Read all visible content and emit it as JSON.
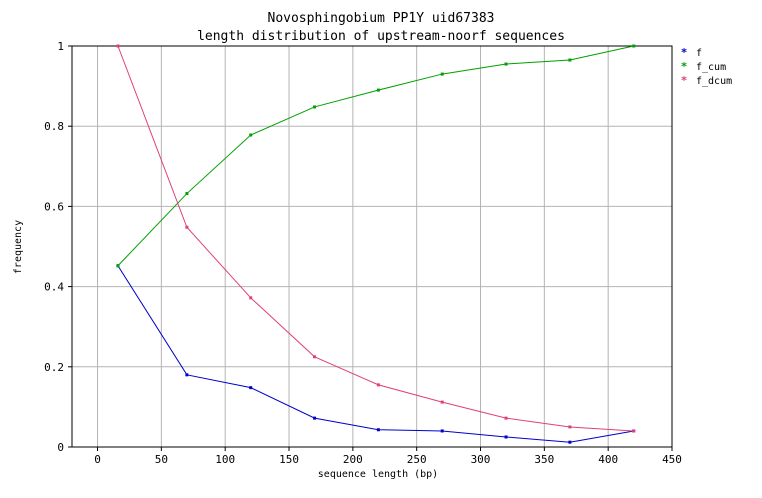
{
  "chart_data": {
    "type": "line",
    "title": "Novosphingobium PP1Y uid67383",
    "subtitle": "length distribution of upstream-noorf sequences",
    "xlabel": "sequence length (bp)",
    "ylabel": "frequency",
    "xlim": [
      -20,
      450
    ],
    "ylim": [
      0,
      1
    ],
    "xticks": [
      0,
      50,
      100,
      150,
      200,
      250,
      300,
      350,
      400,
      450
    ],
    "yticks": [
      0,
      0.2,
      0.4,
      0.6,
      0.8,
      1
    ],
    "ytick_labels": [
      "0",
      "0.2",
      "0.4",
      "0.6",
      "0.8",
      "1"
    ],
    "grid": true,
    "legend": "right",
    "x": [
      16,
      70,
      120,
      170,
      220,
      270,
      320,
      370,
      420
    ],
    "series": [
      {
        "name": "f",
        "color": "#0000cc",
        "values": [
          0.452,
          0.18,
          0.148,
          0.072,
          0.043,
          0.04,
          0.025,
          0.012,
          0.04
        ]
      },
      {
        "name": "f_cum",
        "color": "#00a000",
        "values": [
          0.452,
          0.632,
          0.778,
          0.848,
          0.89,
          0.93,
          0.955,
          0.965,
          1.0
        ]
      },
      {
        "name": "f_dcum",
        "color": "#e0407a",
        "values": [
          1.0,
          0.548,
          0.372,
          0.225,
          0.155,
          0.112,
          0.072,
          0.05,
          0.04
        ]
      }
    ]
  }
}
